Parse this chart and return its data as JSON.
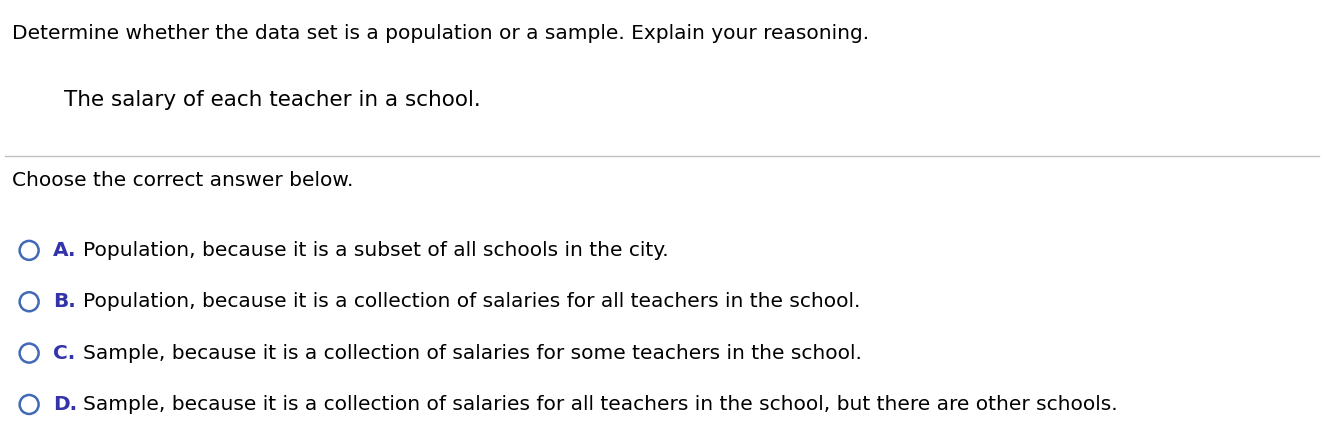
{
  "background_color": "#ffffff",
  "question_line": "Determine whether the data set is a population or a sample. Explain your reasoning.",
  "sub_question": "The salary of each teacher in a school.",
  "choose_line": "Choose the correct answer below.",
  "options": [
    {
      "label": "A.",
      "text": "Population, because it is a subset of all schools in the city."
    },
    {
      "label": "B.",
      "text": "Population, because it is a collection of salaries for all teachers in the school."
    },
    {
      "label": "C.",
      "text": "Sample, because it is a collection of salaries for some teachers in the school."
    },
    {
      "label": "D.",
      "text": "Sample, because it is a collection of salaries for all teachers in the school, but there are other schools."
    }
  ],
  "circle_color": "#4169b8",
  "label_color": "#3333aa",
  "text_color": "#000000",
  "question_fontsize": 14.5,
  "sub_question_fontsize": 15.5,
  "choose_fontsize": 14.5,
  "option_fontsize": 14.5,
  "fig_width": 13.24,
  "fig_height": 4.28,
  "dpi": 100
}
